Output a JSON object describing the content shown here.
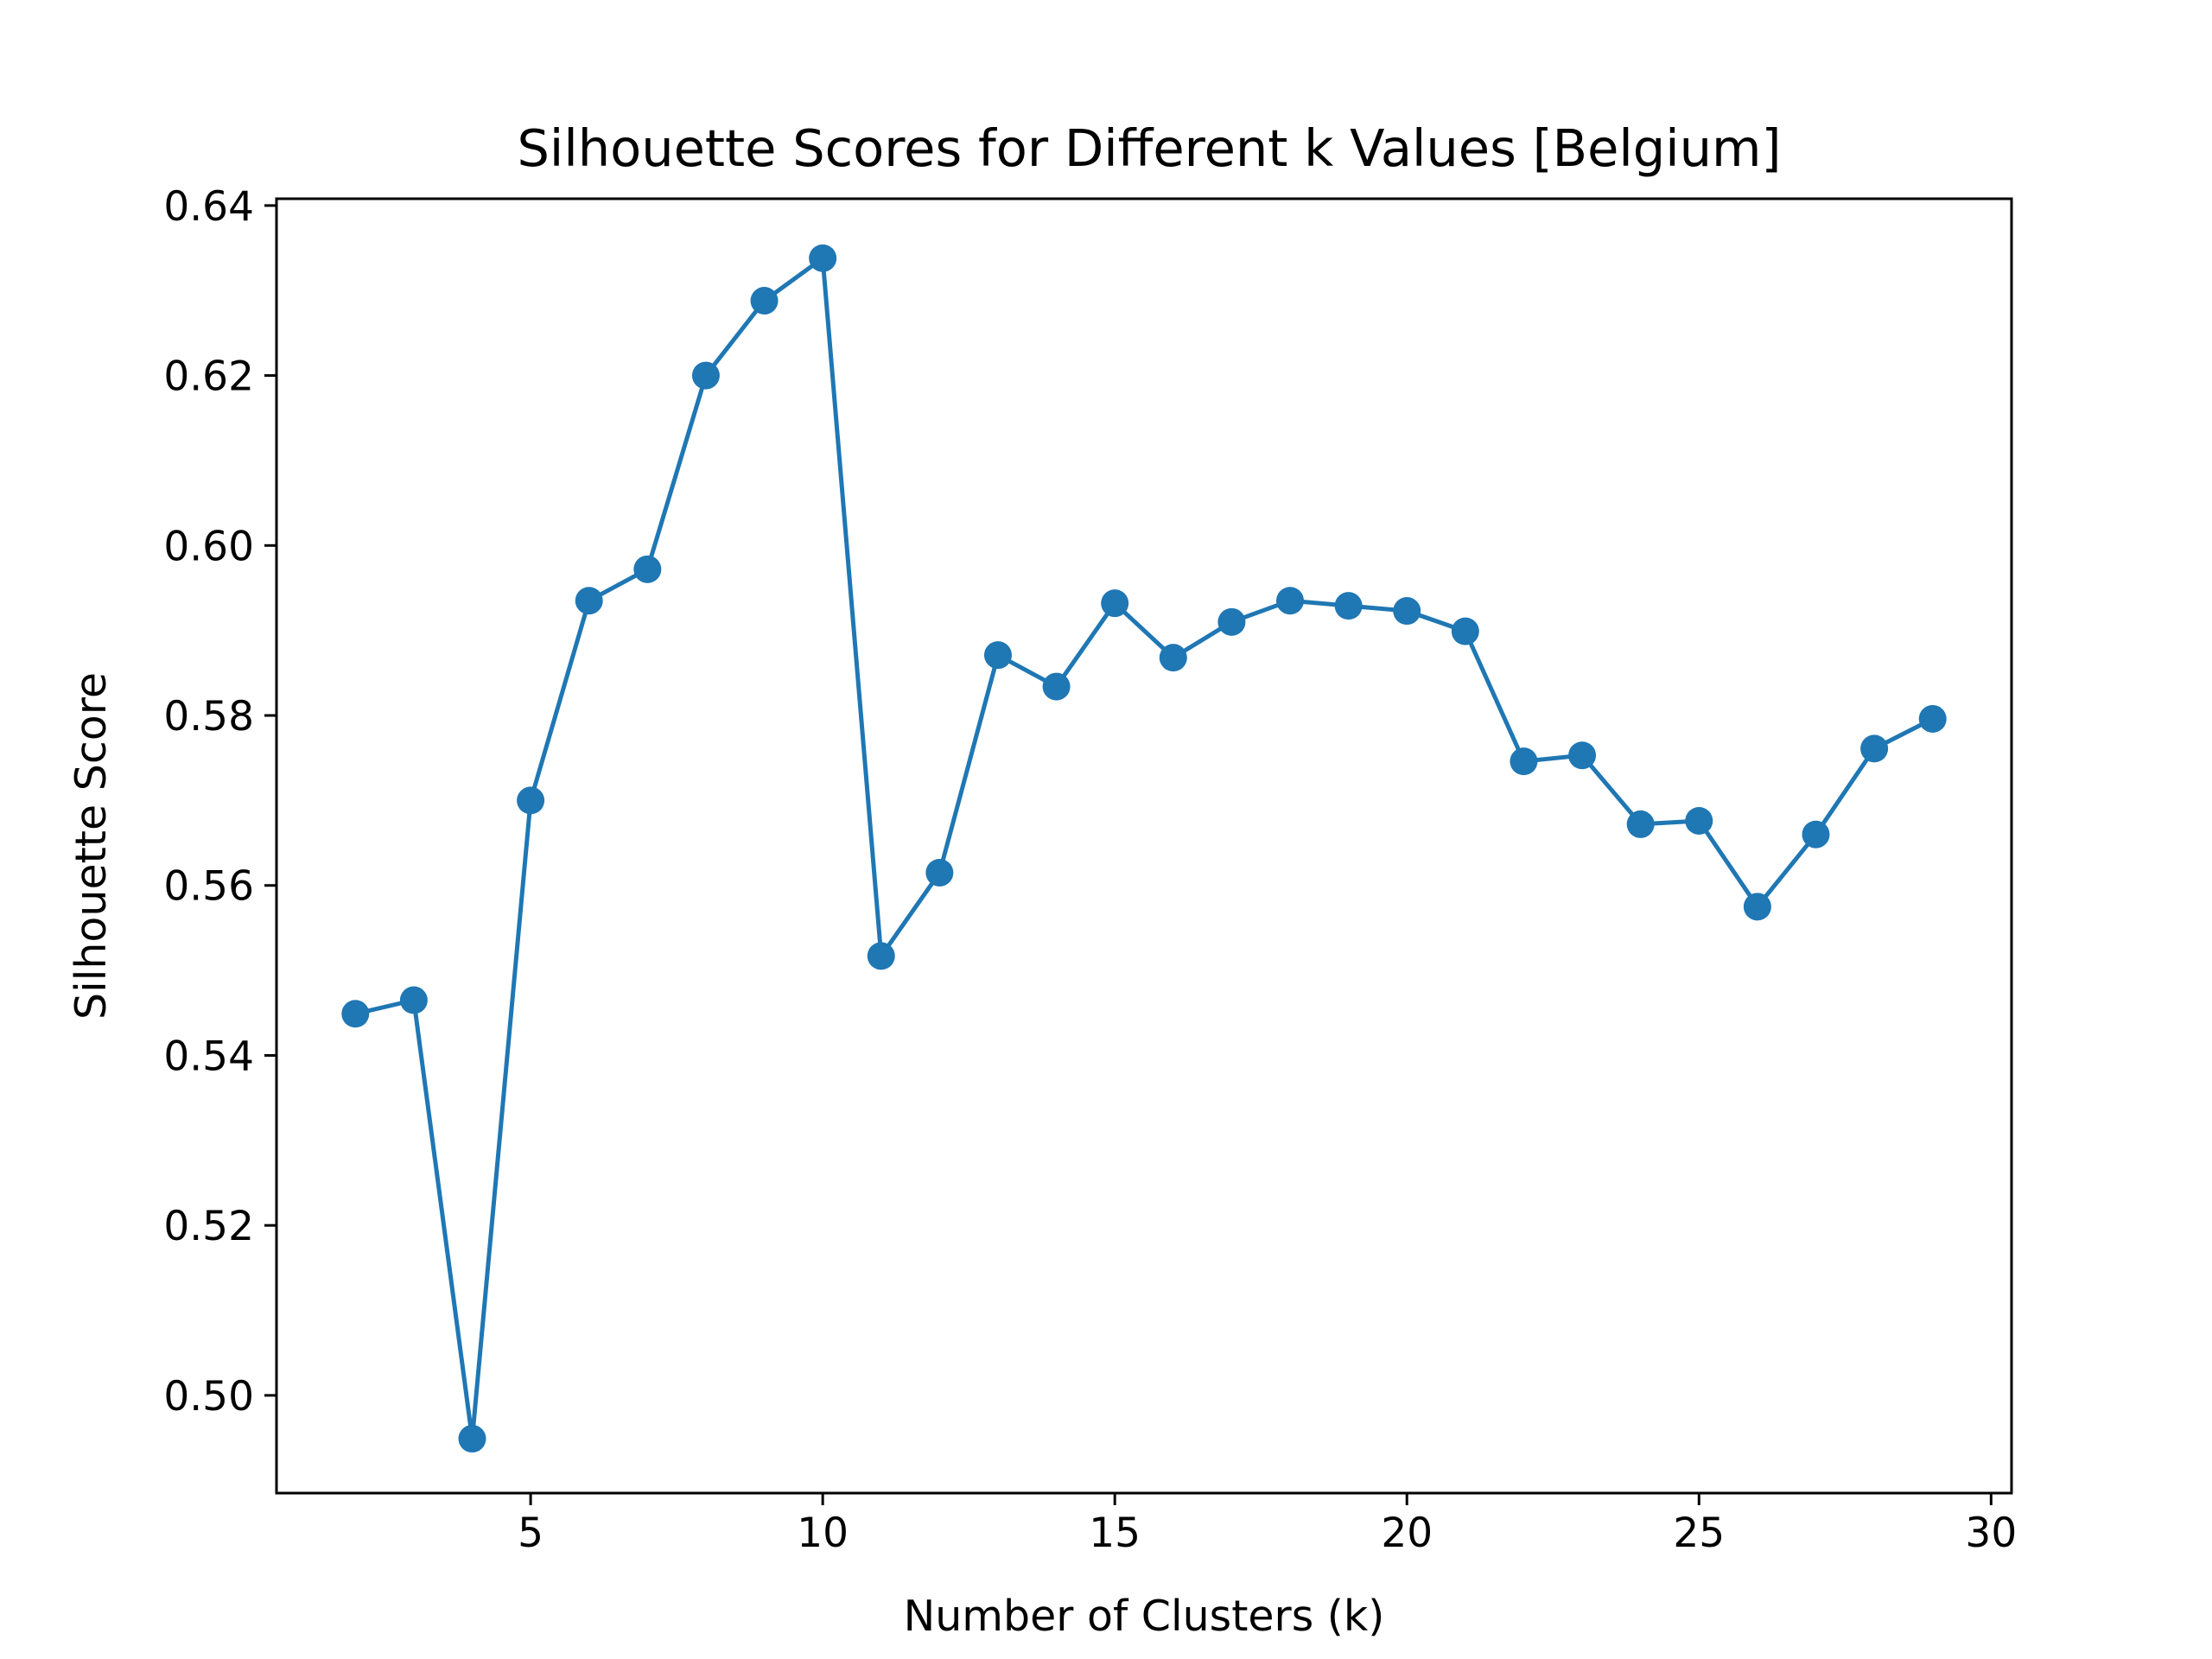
{
  "chart_data": {
    "type": "line",
    "title": "Silhouette Scores for Different k Values [Belgium]",
    "xlabel": "Number of Clusters (k)",
    "ylabel": "Silhouette Score",
    "xlim": [
      0.65,
      30.35
    ],
    "ylim": [
      0.4885,
      0.6408
    ],
    "xticks": [
      5,
      10,
      15,
      20,
      25,
      30
    ],
    "yticks": [
      0.5,
      0.52,
      0.54,
      0.56,
      0.58,
      0.6,
      0.62,
      0.64
    ],
    "ytick_labels": [
      "0.50",
      "0.52",
      "0.54",
      "0.56",
      "0.58",
      "0.60",
      "0.62",
      "0.64"
    ],
    "grid": false,
    "marker": "circle",
    "color": "#1f77b4",
    "series": [
      {
        "x": [
          2,
          3,
          4,
          5,
          6,
          7,
          8,
          9,
          10,
          11,
          12,
          13,
          14,
          15,
          16,
          17,
          18,
          19,
          20,
          21,
          22,
          23,
          24,
          25,
          26,
          27,
          28,
          29
        ],
        "values": [
          0.5449,
          0.5465,
          0.4949,
          0.57,
          0.5935,
          0.5972,
          0.62,
          0.6288,
          0.6338,
          0.5517,
          0.5615,
          0.5871,
          0.5834,
          0.5932,
          0.5868,
          0.591,
          0.5935,
          0.5929,
          0.5923,
          0.5899,
          0.5746,
          0.5753,
          0.5672,
          0.5676,
          0.5575,
          0.566,
          0.5761,
          0.5796
        ]
      }
    ]
  }
}
